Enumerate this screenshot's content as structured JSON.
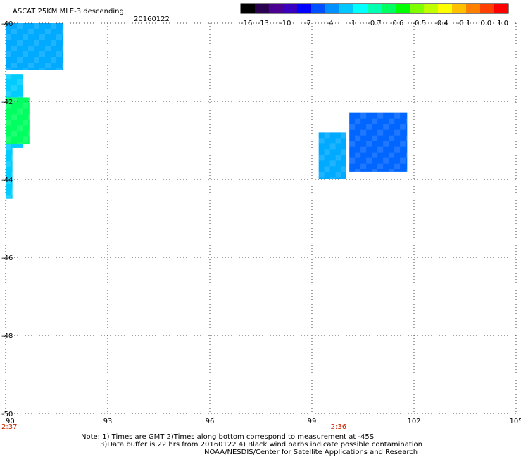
{
  "header": {
    "title": "ASCAT 25KM MLE-3 descending",
    "date": "20160122"
  },
  "colorbar": {
    "colors": [
      "#000000",
      "#2a0050",
      "#4a0090",
      "#3a00c0",
      "#0000ff",
      "#0050ff",
      "#0090ff",
      "#00c8ff",
      "#00ffff",
      "#00ffb0",
      "#00ff60",
      "#00ff00",
      "#80ff00",
      "#c0ff00",
      "#ffff00",
      "#ffc000",
      "#ff8000",
      "#ff4000",
      "#ff0000"
    ],
    "tick_labels": [
      "-16",
      "-13",
      "-10",
      "-7",
      "-4",
      "-1",
      "-0.7",
      "-0.6",
      "-0.5",
      "-0.4",
      "-0.1",
      "0.0",
      "1.0"
    ]
  },
  "map": {
    "lon_range": [
      90,
      105
    ],
    "lat_range": [
      -50,
      -40
    ],
    "x_ticks": [
      "90",
      "93",
      "96",
      "99",
      "102",
      "105"
    ],
    "y_ticks": [
      "-40",
      "-42",
      "-44",
      "-46",
      "-48",
      "-50"
    ],
    "pass_times": [
      {
        "label": "2:37",
        "lon": 90.0
      },
      {
        "label": "2:36",
        "lon": 99.8
      }
    ],
    "grid": "dotted"
  },
  "notes": {
    "line1": "Note: 1) Times are GMT 2)Times along bottom correspond to measurement at -45S",
    "line2": "3)Data buffer is 22 hrs from 20160122 4) Black wind barbs indicate possible contamination",
    "line3": "NOAA/NESDIS/Center for Satellite Applications and Research"
  },
  "swaths": [
    {
      "lon": [
        90.0,
        91.7
      ],
      "lat": [
        -40.0,
        -41.2
      ],
      "color": "#00aaff"
    },
    {
      "lon": [
        90.0,
        90.5
      ],
      "lat": [
        -41.3,
        -43.2
      ],
      "color": "#00ccff"
    },
    {
      "lon": [
        90.0,
        90.7
      ],
      "lat": [
        -41.9,
        -43.1
      ],
      "color": "#00ff60"
    },
    {
      "lon": [
        90.0,
        90.2
      ],
      "lat": [
        -43.1,
        -44.5
      ],
      "color": "#00ccff"
    },
    {
      "lon": [
        100.1,
        101.8
      ],
      "lat": [
        -42.3,
        -43.8
      ],
      "color": "#0066ff"
    },
    {
      "lon": [
        99.2,
        100.0
      ],
      "lat": [
        -42.8,
        -44.0
      ],
      "color": "#00aaff"
    }
  ]
}
